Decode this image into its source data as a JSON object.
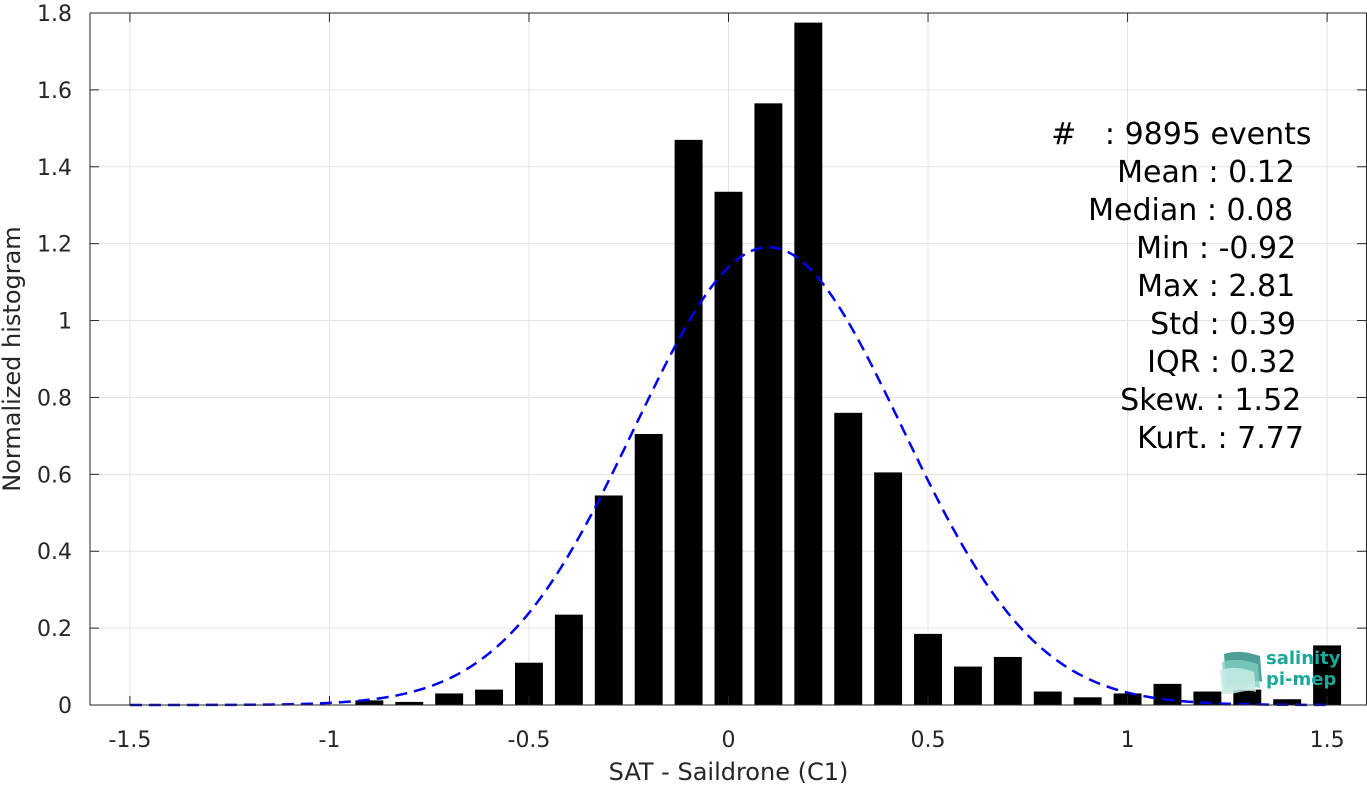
{
  "chart_data": {
    "type": "bar",
    "xlabel": "SAT - Saildrone (C1)",
    "ylabel": "Normalized histogram",
    "xlim": [
      -1.6,
      1.6
    ],
    "ylim": [
      0,
      1.8
    ],
    "xticks": [
      -1.5,
      -1,
      -0.5,
      0,
      0.5,
      1,
      1.5
    ],
    "xtick_labels": [
      "-1.5",
      "-1",
      "-0.5",
      "0",
      "0.5",
      "1",
      "1.5"
    ],
    "yticks": [
      0,
      0.2,
      0.4,
      0.6,
      0.8,
      1,
      1.2,
      1.4,
      1.6,
      1.8
    ],
    "ytick_labels": [
      "0",
      "0.2",
      "0.4",
      "0.6",
      "0.8",
      "1",
      "1.2",
      "1.4",
      "1.6",
      "1.8"
    ],
    "grid": true,
    "bar_color": "#000000",
    "fit_color": "#0000ee",
    "bins": [
      -1.5,
      -1.4,
      -1.3,
      -1.2,
      -1.1,
      -1.0,
      -0.9,
      -0.8,
      -0.7,
      -0.6,
      -0.5,
      -0.4,
      -0.3,
      -0.2,
      -0.1,
      0.0,
      0.1,
      0.2,
      0.3,
      0.4,
      0.5,
      0.6,
      0.7,
      0.8,
      0.9,
      1.0,
      1.1,
      1.2,
      1.3,
      1.4,
      1.5
    ],
    "values": [
      0,
      0,
      0,
      0,
      0,
      0,
      0.012,
      0.008,
      0.03,
      0.04,
      0.11,
      0.235,
      0.545,
      0.705,
      1.47,
      1.335,
      1.565,
      1.775,
      0.76,
      0.605,
      0.185,
      0.1,
      0.125,
      0.035,
      0.02,
      0.03,
      0.055,
      0.035,
      0.04,
      0.015,
      0.155
    ],
    "fit": {
      "type": "normal",
      "mean": 0.1,
      "std": 0.335,
      "style": "dashed"
    }
  },
  "stats": [
    {
      "name": "#  ",
      "value": "9895 events"
    },
    {
      "name": "Mean",
      "value": "0.12"
    },
    {
      "name": "Median",
      "value": "0.08"
    },
    {
      "name": "Min",
      "value": "-0.92"
    },
    {
      "name": "Max",
      "value": "2.81"
    },
    {
      "name": "Std",
      "value": "0.39"
    },
    {
      "name": "IQR",
      "value": "0.32"
    },
    {
      "name": "Skew.",
      "value": "1.52"
    },
    {
      "name": "Kurt.",
      "value": "7.77"
    }
  ],
  "logo": {
    "line1": "salinity",
    "line2": "pi-mep",
    "color": "#1aa89b"
  }
}
